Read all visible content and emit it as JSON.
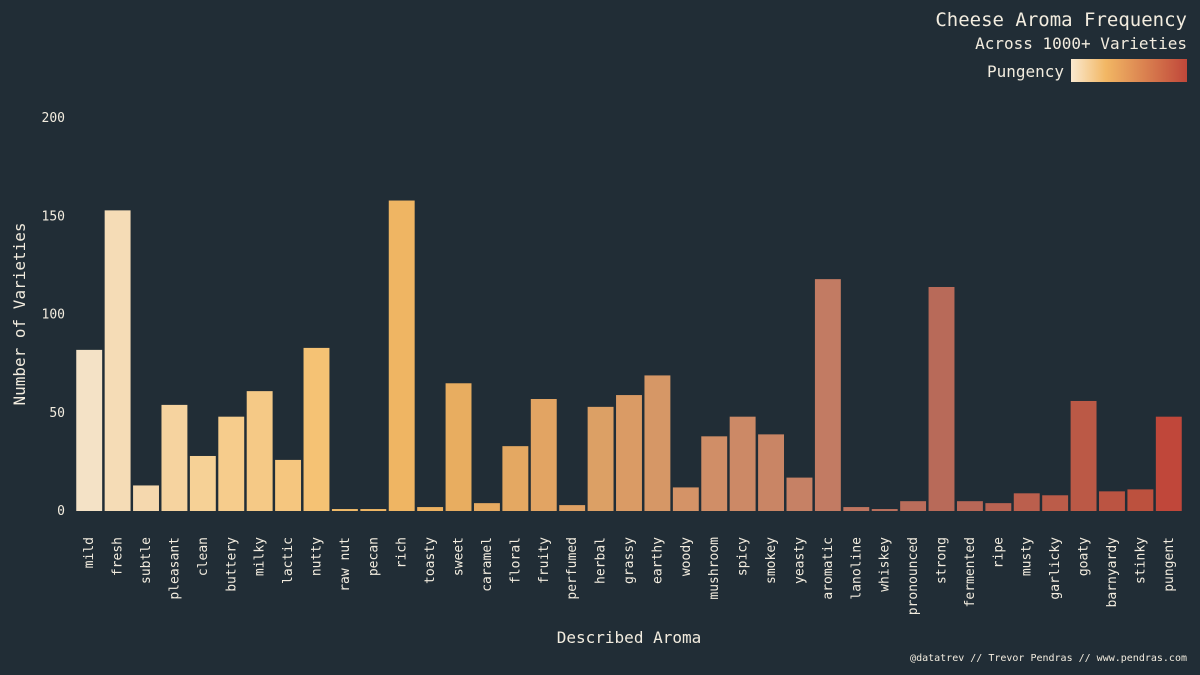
{
  "chart_data": {
    "type": "bar",
    "title": "Cheese Aroma Frequency",
    "subtitle": "Across 1000+ Varieties",
    "xlabel": "Described Aroma",
    "ylabel": "Number of Varieties",
    "ylim": [
      0,
      200
    ],
    "yticks": [
      0,
      50,
      100,
      150,
      200
    ],
    "grid": false,
    "legend": {
      "label": "Pungency",
      "placement": "top-right",
      "gradient_start": "#fae9cf",
      "gradient_mid": "#f2b764",
      "gradient_end": "#c0473a"
    },
    "categories": [
      "mild",
      "fresh",
      "subtle",
      "pleasant",
      "clean",
      "buttery",
      "milky",
      "lactic",
      "nutty",
      "raw nut",
      "pecan",
      "rich",
      "toasty",
      "sweet",
      "caramel",
      "floral",
      "fruity",
      "perfumed",
      "herbal",
      "grassy",
      "earthy",
      "woody",
      "mushroom",
      "spicy",
      "smokey",
      "yeasty",
      "aromatic",
      "lanoline",
      "whiskey",
      "pronounced",
      "strong",
      "fermented",
      "ripe",
      "musty",
      "garlicky",
      "goaty",
      "barnyardy",
      "stinky",
      "pungent"
    ],
    "values": [
      82,
      153,
      13,
      54,
      28,
      48,
      61,
      26,
      83,
      1,
      1,
      158,
      2,
      65,
      4,
      33,
      57,
      3,
      53,
      59,
      69,
      12,
      38,
      48,
      39,
      17,
      118,
      2,
      1,
      5,
      114,
      5,
      4,
      9,
      8,
      56,
      10,
      11,
      48
    ],
    "colors": [
      "#f4e2c6",
      "#f5dcb6",
      "#f5d8ae",
      "#f6d39f",
      "#f6d196",
      "#f6cc8c",
      "#f5c986",
      "#f5c67f",
      "#f5c274",
      "#f1bb6a",
      "#f0b765",
      "#efb563",
      "#ecb161",
      "#e8ad60",
      "#e6aa61",
      "#e4a862",
      "#e2a463",
      "#dfa164",
      "#dca065",
      "#da9b65",
      "#d69766",
      "#d49367",
      "#d08e67",
      "#cc8966",
      "#c98565",
      "#c68165",
      "#c27b63",
      "#bf7560",
      "#bc715e",
      "#ba6d5b",
      "#b86a59",
      "#b86757",
      "#b96352",
      "#bb5f4d",
      "#bb5c49",
      "#bb5946",
      "#bb5442",
      "#bc513e",
      "#c0473a"
    ]
  },
  "credit": "@datatrev // Trevor Pendras // www.pendras.com",
  "colors": {
    "background": "#212d36",
    "text": "#f2ecdf"
  }
}
